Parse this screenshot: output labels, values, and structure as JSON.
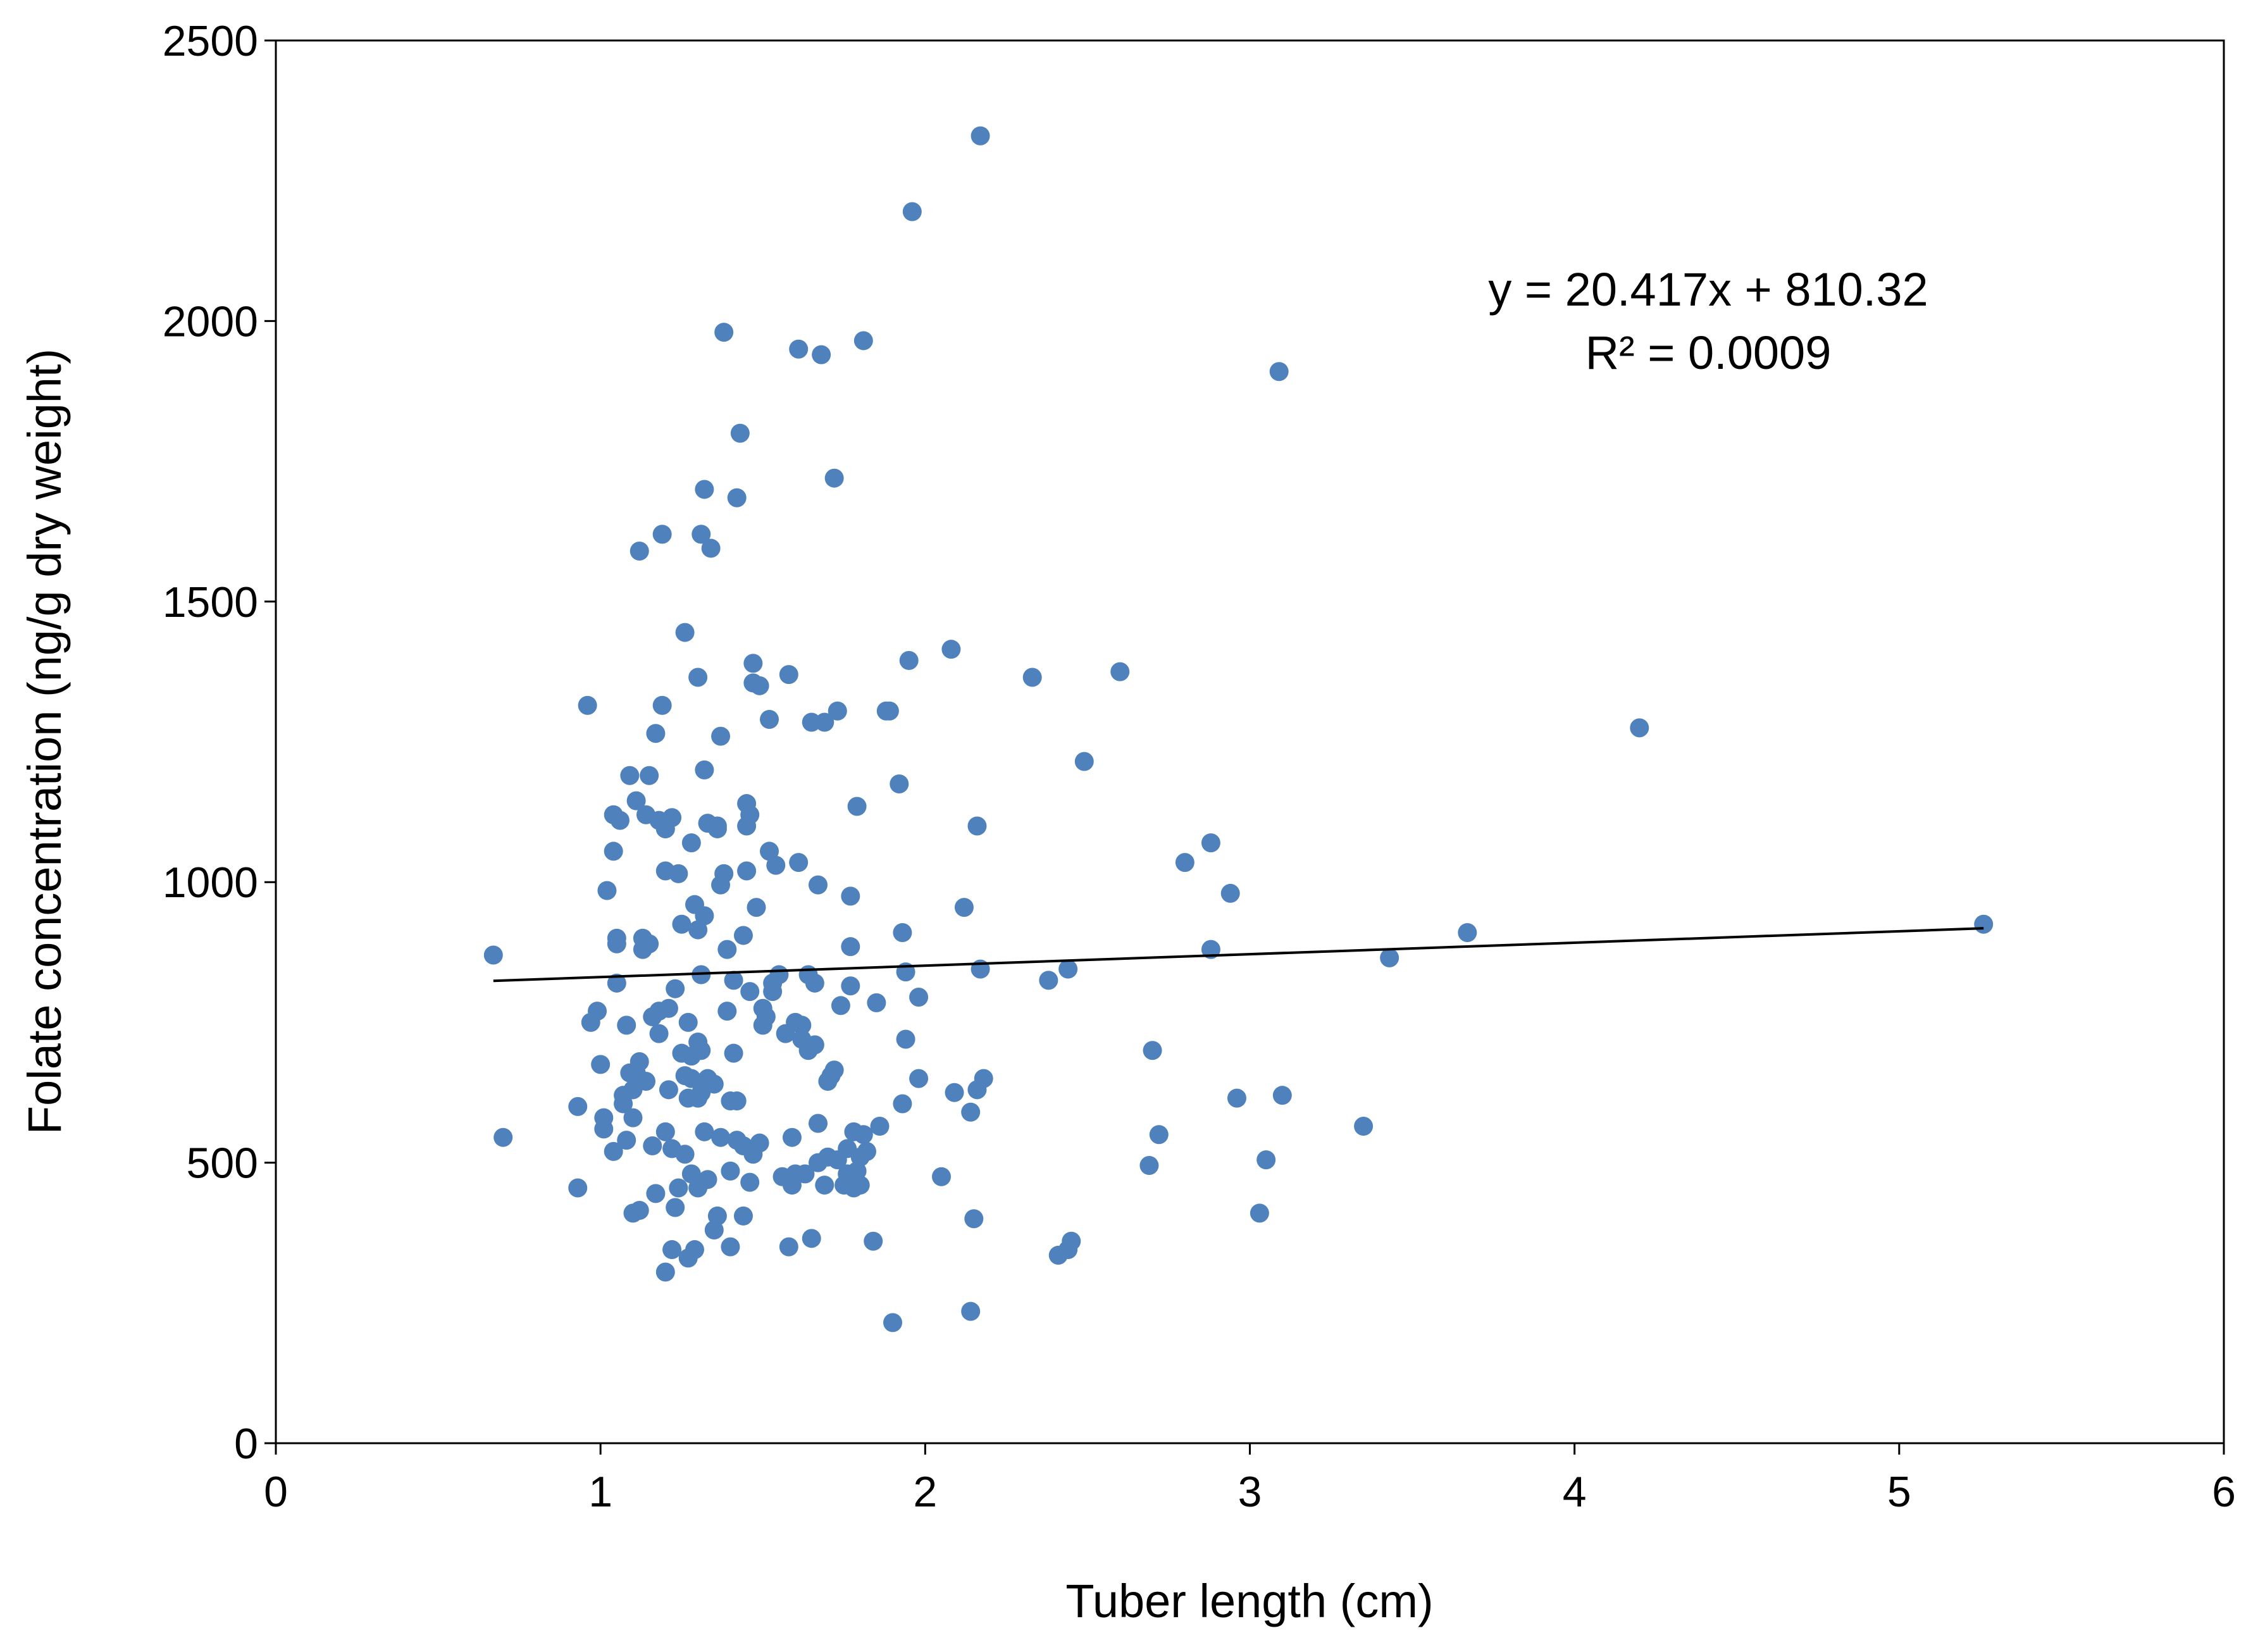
{
  "chart_data": {
    "type": "scatter",
    "title": "",
    "xlabel": "Tuber length (cm)",
    "ylabel": "Folate concentration (ng/g dry weight)",
    "xlim": [
      0,
      6
    ],
    "ylim": [
      0,
      2500
    ],
    "x_ticks": [
      "0",
      "1",
      "2",
      "3",
      "4",
      "5",
      "6"
    ],
    "y_ticks": [
      "0",
      "500",
      "1000",
      "1500",
      "2000",
      "2500"
    ],
    "grid": false,
    "legend": "none",
    "marker_color": "#4F81BD",
    "trendline": {
      "equation": "y = 20.417x + 810.32",
      "r_squared": "R² = 0.0009",
      "slope": 20.417,
      "intercept": 810.32,
      "x_range": [
        0.67,
        5.26
      ],
      "color": "#000000"
    },
    "points": [
      [
        0.67,
        870
      ],
      [
        0.7,
        545
      ],
      [
        0.93,
        600
      ],
      [
        0.93,
        455
      ],
      [
        0.96,
        1315
      ],
      [
        0.97,
        750
      ],
      [
        0.99,
        770
      ],
      [
        1.0,
        675
      ],
      [
        1.01,
        580
      ],
      [
        1.01,
        560
      ],
      [
        1.02,
        985
      ],
      [
        1.04,
        1120
      ],
      [
        1.04,
        1055
      ],
      [
        1.05,
        890
      ],
      [
        1.05,
        900
      ],
      [
        1.05,
        820
      ],
      [
        1.04,
        520
      ],
      [
        1.06,
        1110
      ],
      [
        1.07,
        605
      ],
      [
        1.07,
        620
      ],
      [
        1.08,
        745
      ],
      [
        1.08,
        540
      ],
      [
        1.09,
        660
      ],
      [
        1.09,
        1190
      ],
      [
        1.1,
        630
      ],
      [
        1.1,
        580
      ],
      [
        1.1,
        410
      ],
      [
        1.11,
        1145
      ],
      [
        1.11,
        660
      ],
      [
        1.12,
        680
      ],
      [
        1.12,
        415
      ],
      [
        1.12,
        1590
      ],
      [
        1.13,
        900
      ],
      [
        1.13,
        880
      ],
      [
        1.14,
        1120
      ],
      [
        1.14,
        645
      ],
      [
        1.15,
        1190
      ],
      [
        1.15,
        890
      ],
      [
        1.16,
        760
      ],
      [
        1.16,
        530
      ],
      [
        1.17,
        1265
      ],
      [
        1.17,
        445
      ],
      [
        1.18,
        1110
      ],
      [
        1.18,
        770
      ],
      [
        1.18,
        730
      ],
      [
        1.19,
        1315
      ],
      [
        1.19,
        1620
      ],
      [
        1.2,
        1020
      ],
      [
        1.2,
        1095
      ],
      [
        1.2,
        1095
      ],
      [
        1.2,
        555
      ],
      [
        1.2,
        305
      ],
      [
        1.21,
        775
      ],
      [
        1.21,
        630
      ],
      [
        1.22,
        1115
      ],
      [
        1.22,
        345
      ],
      [
        1.22,
        525
      ],
      [
        1.23,
        810
      ],
      [
        1.23,
        420
      ],
      [
        1.24,
        1015
      ],
      [
        1.24,
        455
      ],
      [
        1.25,
        695
      ],
      [
        1.25,
        925
      ],
      [
        1.26,
        1445
      ],
      [
        1.26,
        655
      ],
      [
        1.26,
        515
      ],
      [
        1.27,
        615
      ],
      [
        1.27,
        750
      ],
      [
        1.27,
        330
      ],
      [
        1.28,
        1070
      ],
      [
        1.28,
        690
      ],
      [
        1.28,
        650
      ],
      [
        1.28,
        480
      ],
      [
        1.29,
        345
      ],
      [
        1.29,
        960
      ],
      [
        1.3,
        1365
      ],
      [
        1.3,
        915
      ],
      [
        1.3,
        715
      ],
      [
        1.3,
        615
      ],
      [
        1.3,
        455
      ],
      [
        1.31,
        1620
      ],
      [
        1.31,
        835
      ],
      [
        1.31,
        700
      ],
      [
        1.31,
        625
      ],
      [
        1.32,
        1700
      ],
      [
        1.32,
        1200
      ],
      [
        1.32,
        940
      ],
      [
        1.32,
        555
      ],
      [
        1.33,
        1105
      ],
      [
        1.33,
        650
      ],
      [
        1.33,
        470
      ],
      [
        1.34,
        1595
      ],
      [
        1.35,
        640
      ],
      [
        1.35,
        380
      ],
      [
        1.36,
        1100
      ],
      [
        1.36,
        1095
      ],
      [
        1.36,
        405
      ],
      [
        1.37,
        1260
      ],
      [
        1.37,
        995
      ],
      [
        1.37,
        545
      ],
      [
        1.38,
        1980
      ],
      [
        1.38,
        1015
      ],
      [
        1.39,
        770
      ],
      [
        1.39,
        880
      ],
      [
        1.4,
        610
      ],
      [
        1.4,
        485
      ],
      [
        1.4,
        350
      ],
      [
        1.41,
        825
      ],
      [
        1.41,
        695
      ],
      [
        1.42,
        610
      ],
      [
        1.42,
        540
      ],
      [
        1.42,
        1685
      ],
      [
        1.43,
        1800
      ],
      [
        1.44,
        905
      ],
      [
        1.44,
        405
      ],
      [
        1.44,
        530
      ],
      [
        1.45,
        1140
      ],
      [
        1.45,
        1020
      ],
      [
        1.45,
        1100
      ],
      [
        1.46,
        1120
      ],
      [
        1.46,
        805
      ],
      [
        1.46,
        465
      ],
      [
        1.47,
        1390
      ],
      [
        1.47,
        1355
      ],
      [
        1.47,
        515
      ],
      [
        1.48,
        955
      ],
      [
        1.49,
        1350
      ],
      [
        1.49,
        535
      ],
      [
        1.5,
        775
      ],
      [
        1.5,
        745
      ],
      [
        1.51,
        760
      ],
      [
        1.52,
        1290
      ],
      [
        1.52,
        1055
      ],
      [
        1.53,
        820
      ],
      [
        1.53,
        805
      ],
      [
        1.54,
        1030
      ],
      [
        1.55,
        835
      ],
      [
        1.56,
        475
      ],
      [
        1.57,
        730
      ],
      [
        1.58,
        1370
      ],
      [
        1.58,
        350
      ],
      [
        1.59,
        460
      ],
      [
        1.59,
        545
      ],
      [
        1.6,
        750
      ],
      [
        1.6,
        480
      ],
      [
        1.61,
        1950
      ],
      [
        1.61,
        1035
      ],
      [
        1.62,
        745
      ],
      [
        1.62,
        720
      ],
      [
        1.63,
        480
      ],
      [
        1.64,
        835
      ],
      [
        1.64,
        700
      ],
      [
        1.65,
        1285
      ],
      [
        1.65,
        365
      ],
      [
        1.66,
        820
      ],
      [
        1.66,
        710
      ],
      [
        1.67,
        995
      ],
      [
        1.67,
        570
      ],
      [
        1.67,
        500
      ],
      [
        1.68,
        1940
      ],
      [
        1.69,
        1285
      ],
      [
        1.69,
        460
      ],
      [
        1.7,
        645
      ],
      [
        1.7,
        510
      ],
      [
        1.71,
        655
      ],
      [
        1.72,
        1720
      ],
      [
        1.72,
        665
      ],
      [
        1.73,
        1305
      ],
      [
        1.73,
        505
      ],
      [
        1.74,
        780
      ],
      [
        1.75,
        460
      ],
      [
        1.76,
        525
      ],
      [
        1.76,
        480
      ],
      [
        1.77,
        975
      ],
      [
        1.77,
        885
      ],
      [
        1.77,
        815
      ],
      [
        1.78,
        555
      ],
      [
        1.78,
        455
      ],
      [
        1.79,
        1135
      ],
      [
        1.79,
        485
      ],
      [
        1.8,
        460
      ],
      [
        1.8,
        510
      ],
      [
        1.81,
        1965
      ],
      [
        1.81,
        550
      ],
      [
        1.82,
        520
      ],
      [
        1.84,
        360
      ],
      [
        1.85,
        785
      ],
      [
        1.86,
        565
      ],
      [
        1.88,
        1305
      ],
      [
        1.89,
        1305
      ],
      [
        1.9,
        215
      ],
      [
        1.92,
        1175
      ],
      [
        1.93,
        605
      ],
      [
        1.93,
        910
      ],
      [
        1.94,
        840
      ],
      [
        1.94,
        720
      ],
      [
        1.95,
        1395
      ],
      [
        1.96,
        2195
      ],
      [
        1.98,
        795
      ],
      [
        1.98,
        650
      ],
      [
        2.05,
        475
      ],
      [
        2.08,
        1415
      ],
      [
        2.09,
        625
      ],
      [
        2.12,
        955
      ],
      [
        2.14,
        235
      ],
      [
        2.14,
        590
      ],
      [
        2.15,
        400
      ],
      [
        2.16,
        630
      ],
      [
        2.16,
        1100
      ],
      [
        2.17,
        2330
      ],
      [
        2.17,
        845
      ],
      [
        2.18,
        650
      ],
      [
        2.33,
        1365
      ],
      [
        2.38,
        825
      ],
      [
        2.41,
        335
      ],
      [
        2.44,
        345
      ],
      [
        2.45,
        360
      ],
      [
        2.44,
        845
      ],
      [
        2.49,
        1215
      ],
      [
        2.6,
        1375
      ],
      [
        2.69,
        495
      ],
      [
        2.7,
        700
      ],
      [
        2.72,
        550
      ],
      [
        2.8,
        1035
      ],
      [
        2.88,
        1070
      ],
      [
        2.88,
        880
      ],
      [
        2.94,
        980
      ],
      [
        2.96,
        615
      ],
      [
        3.03,
        410
      ],
      [
        3.05,
        505
      ],
      [
        3.09,
        1910
      ],
      [
        3.1,
        620
      ],
      [
        3.35,
        565
      ],
      [
        3.43,
        865
      ],
      [
        3.67,
        910
      ],
      [
        4.2,
        1275
      ],
      [
        5.26,
        925
      ]
    ]
  }
}
